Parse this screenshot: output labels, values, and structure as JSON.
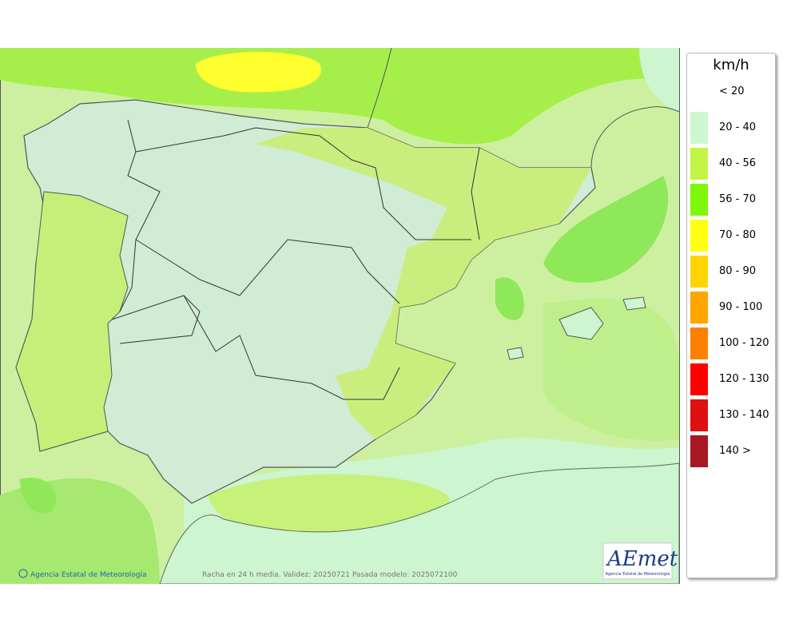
{
  "map": {
    "credit": "Agencia Estatal de Meteorología",
    "caption": "Racha en 24 h media. Validez: 20250721 Pasada modelo: 2025072100",
    "logo": {
      "text": "AEmet",
      "subtitle": "Agencia Estatal de Meteorología"
    }
  },
  "legend": {
    "title": "km/h",
    "items": [
      {
        "label": "< 20",
        "color": "#ffffff"
      },
      {
        "label": "20 - 40",
        "color": "#ccf7cf"
      },
      {
        "label": "40 - 56",
        "color": "#c2f546"
      },
      {
        "label": "56 - 70",
        "color": "#7ef70a"
      },
      {
        "label": "70 - 80",
        "color": "#ffff10"
      },
      {
        "label": "80 - 90",
        "color": "#ffd400"
      },
      {
        "label": "90 - 100",
        "color": "#ffa500"
      },
      {
        "label": "100 - 120",
        "color": "#ff8000"
      },
      {
        "label": "120 - 130",
        "color": "#ff0000"
      },
      {
        "label": "130 - 140",
        "color": "#dd1111"
      },
      {
        "label": "140 >",
        "color": "#a81822"
      }
    ]
  }
}
